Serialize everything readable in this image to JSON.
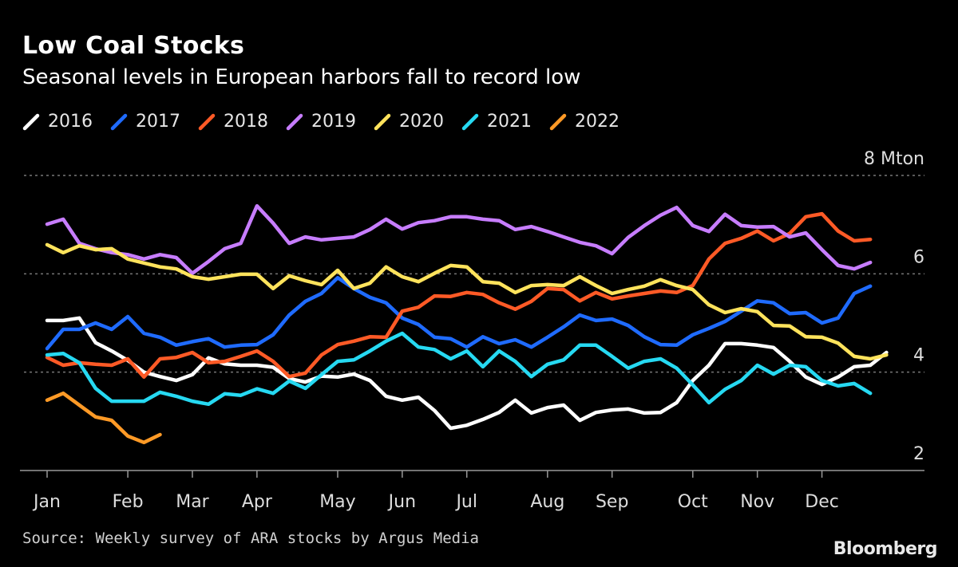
{
  "chart_data": {
    "type": "line",
    "title": "Low Coal Stocks",
    "subtitle": "Seasonal levels in European harbors fall to record low",
    "x_unit": "week of year",
    "xticks": [
      {
        "label": "Jan",
        "week": 1
      },
      {
        "label": "Feb",
        "week": 6
      },
      {
        "label": "Mar",
        "week": 10
      },
      {
        "label": "Apr",
        "week": 14
      },
      {
        "label": "May",
        "week": 19
      },
      {
        "label": "Jun",
        "week": 23
      },
      {
        "label": "Jul",
        "week": 27
      },
      {
        "label": "Aug",
        "week": 32
      },
      {
        "label": "Sep",
        "week": 36
      },
      {
        "label": "Oct",
        "week": 41
      },
      {
        "label": "Nov",
        "week": 45
      },
      {
        "label": "Dec",
        "week": 49
      }
    ],
    "ylim": [
      2,
      8
    ],
    "yticks": [
      {
        "value": 8,
        "label": "8 Mton"
      },
      {
        "value": 6,
        "label": "6"
      },
      {
        "value": 4,
        "label": "4"
      },
      {
        "value": 2,
        "label": "2"
      }
    ],
    "grid": true,
    "legend": "top-left",
    "series": [
      {
        "name": "2016",
        "color": "#ffffff",
        "values": [
          5.05,
          5.05,
          5.1,
          4.6,
          4.43,
          4.24,
          4.0,
          3.91,
          3.83,
          3.95,
          4.29,
          4.17,
          4.14,
          4.14,
          4.1,
          3.87,
          3.8,
          3.92,
          3.9,
          3.96,
          3.83,
          3.51,
          3.43,
          3.49,
          3.22,
          2.86,
          2.92,
          3.04,
          3.18,
          3.43,
          3.17,
          3.28,
          3.33,
          3.02,
          3.18,
          3.23,
          3.25,
          3.17,
          3.18,
          3.38,
          3.83,
          4.14,
          4.58,
          4.58,
          4.55,
          4.5,
          4.22,
          3.9,
          3.75,
          3.9,
          4.11,
          4.14,
          4.4
        ]
      },
      {
        "name": "2017",
        "color": "#1f6bff",
        "values": [
          4.48,
          4.87,
          4.87,
          5.0,
          4.87,
          5.13,
          4.79,
          4.71,
          4.55,
          4.62,
          4.68,
          4.51,
          4.55,
          4.56,
          4.76,
          5.16,
          5.44,
          5.6,
          5.92,
          5.7,
          5.52,
          5.41,
          5.1,
          4.97,
          4.71,
          4.68,
          4.51,
          4.72,
          4.58,
          4.66,
          4.51,
          4.71,
          4.92,
          5.16,
          5.05,
          5.08,
          4.95,
          4.72,
          4.56,
          4.55,
          4.76,
          4.89,
          5.03,
          5.24,
          5.45,
          5.41,
          5.19,
          5.21,
          5.0,
          5.1,
          5.6,
          5.75
        ]
      },
      {
        "name": "2018",
        "color": "#ff5a26",
        "values": [
          4.3,
          4.14,
          4.19,
          4.16,
          4.14,
          4.27,
          3.9,
          4.27,
          4.3,
          4.4,
          4.19,
          4.22,
          4.32,
          4.43,
          4.22,
          3.91,
          3.98,
          4.35,
          4.56,
          4.63,
          4.72,
          4.71,
          5.24,
          5.32,
          5.55,
          5.54,
          5.62,
          5.58,
          5.41,
          5.28,
          5.44,
          5.7,
          5.68,
          5.45,
          5.62,
          5.49,
          5.55,
          5.6,
          5.65,
          5.62,
          5.76,
          6.3,
          6.62,
          6.72,
          6.87,
          6.67,
          6.82,
          7.16,
          7.22,
          6.87,
          6.67,
          6.7
        ]
      },
      {
        "name": "2019",
        "color": "#c77dff",
        "values": [
          7.01,
          7.11,
          6.62,
          6.51,
          6.43,
          6.39,
          6.3,
          6.39,
          6.33,
          6.01,
          6.25,
          6.51,
          6.62,
          7.38,
          7.03,
          6.62,
          6.75,
          6.69,
          6.72,
          6.75,
          6.9,
          7.11,
          6.91,
          7.04,
          7.08,
          7.16,
          7.16,
          7.11,
          7.08,
          6.9,
          6.96,
          6.86,
          6.75,
          6.64,
          6.57,
          6.41,
          6.74,
          6.98,
          7.19,
          7.35,
          6.98,
          6.86,
          7.21,
          6.98,
          6.95,
          6.96,
          6.75,
          6.83,
          6.49,
          6.17,
          6.1,
          6.23
        ]
      },
      {
        "name": "2020",
        "color": "#ffe35c",
        "values": [
          6.59,
          6.43,
          6.57,
          6.49,
          6.51,
          6.3,
          6.22,
          6.14,
          6.1,
          5.94,
          5.89,
          5.94,
          5.99,
          5.99,
          5.7,
          5.96,
          5.86,
          5.78,
          6.07,
          5.7,
          5.81,
          6.14,
          5.94,
          5.84,
          6.01,
          6.17,
          6.14,
          5.84,
          5.81,
          5.62,
          5.76,
          5.78,
          5.76,
          5.94,
          5.76,
          5.6,
          5.68,
          5.75,
          5.88,
          5.76,
          5.68,
          5.37,
          5.21,
          5.29,
          5.23,
          4.95,
          4.94,
          4.72,
          4.71,
          4.59,
          4.32,
          4.27,
          4.35
        ]
      },
      {
        "name": "2021",
        "color": "#26d9f2",
        "values": [
          4.35,
          4.38,
          4.19,
          3.67,
          3.41,
          3.41,
          3.41,
          3.59,
          3.51,
          3.41,
          3.35,
          3.56,
          3.53,
          3.66,
          3.57,
          3.82,
          3.67,
          3.95,
          4.22,
          4.25,
          4.43,
          4.63,
          4.79,
          4.51,
          4.46,
          4.27,
          4.43,
          4.11,
          4.43,
          4.22,
          3.91,
          4.16,
          4.25,
          4.55,
          4.55,
          4.32,
          4.08,
          4.22,
          4.27,
          4.08,
          3.74,
          3.38,
          3.65,
          3.83,
          4.14,
          3.96,
          4.14,
          4.11,
          3.83,
          3.72,
          3.77,
          3.57
        ]
      },
      {
        "name": "2022",
        "color": "#ff9a26",
        "values": [
          3.43,
          3.57,
          3.33,
          3.09,
          3.02,
          2.7,
          2.57,
          2.73
        ]
      }
    ]
  },
  "source": "Source: Weekly survey of ARA stocks by Argus Media",
  "logo": "Bloomberg",
  "colors": {
    "background": "#000000",
    "grid": "#777777",
    "axis": "#999999",
    "text": "#ffffff"
  }
}
